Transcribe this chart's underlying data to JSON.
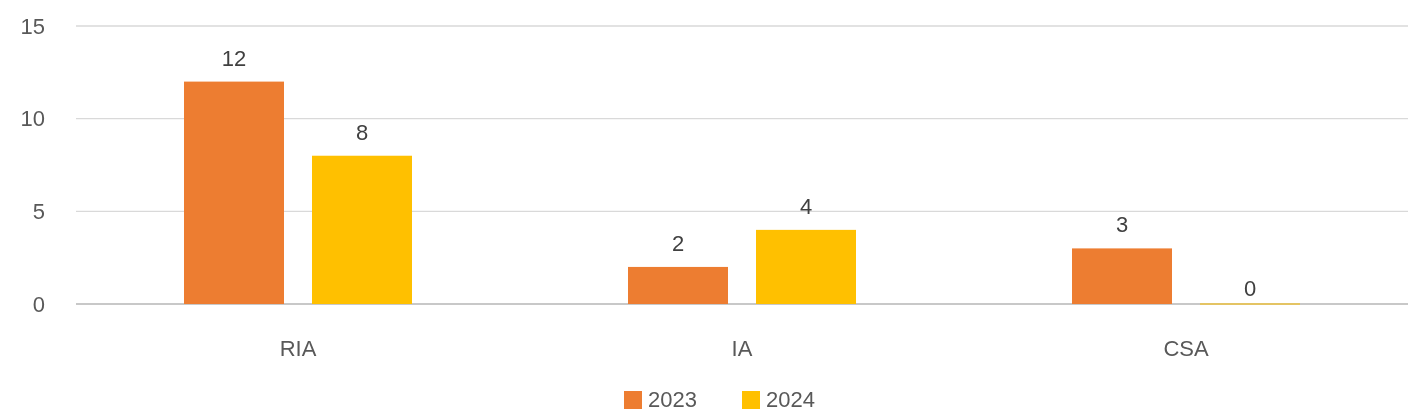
{
  "chart_data": {
    "type": "bar",
    "categories": [
      "RIA",
      "IA",
      "CSA"
    ],
    "series": [
      {
        "name": "2023",
        "color": "#ed7d31",
        "values": [
          12,
          2,
          3
        ]
      },
      {
        "name": "2024",
        "color": "#ffc000",
        "values": [
          8,
          4,
          0
        ]
      }
    ],
    "ylim": [
      0,
      15
    ],
    "yticks": [
      0,
      5,
      10,
      15
    ],
    "grid": "y",
    "legend": "bottom",
    "data_labels": true
  }
}
